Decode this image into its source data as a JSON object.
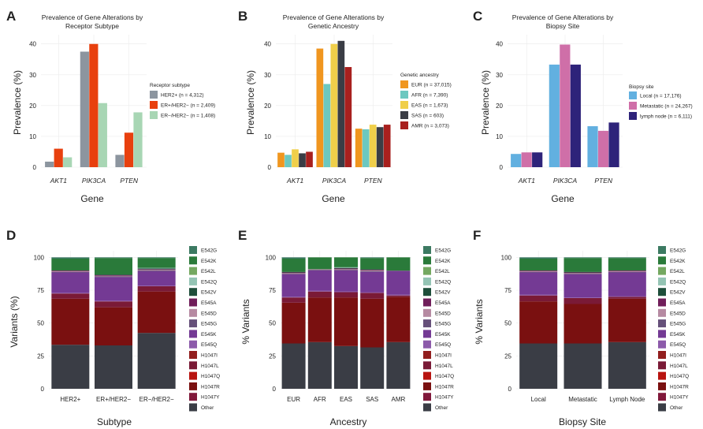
{
  "colors": {
    "receptor": [
      "#8c959f",
      "#e8400e",
      "#a8d6b4"
    ],
    "ancestry": [
      "#f0961f",
      "#6cc8c0",
      "#f0cf4a",
      "#3a3d45",
      "#a8201e"
    ],
    "site": [
      "#62b0e0",
      "#cf6fa8",
      "#2e237a"
    ],
    "mutation": [
      "#3c7a62",
      "#2a7a3a",
      "#74a860",
      "#94c4b4",
      "#1e4e3a",
      "#701e5a",
      "#b68aa2",
      "#66507a",
      "#743a94",
      "#8c5aaa",
      "#921e1e",
      "#7a1a36",
      "#b81410",
      "#7a1010",
      "#80183a",
      "#3a3d45"
    ]
  },
  "chart_data": [
    {
      "id": "A",
      "panel_label": "A",
      "type": "bar",
      "title": "Prevalence of Gene Alterations by Receptor Subtype",
      "title_lines": [
        "Prevalence of Gene Alterations by",
        "Receptor Subtype"
      ],
      "xlabel": "Gene",
      "ylabel": "Prevalence (%)",
      "categories": [
        "AKT1",
        "PIK3CA",
        "PTEN"
      ],
      "ylim": [
        0,
        43
      ],
      "yticks": [
        0,
        10,
        20,
        30,
        40
      ],
      "legend_title": "Receptor subtype",
      "legend_position": "right",
      "series": [
        {
          "name": "HER2+ (n = 4,312)",
          "values": [
            1.8,
            37.5,
            4.0
          ]
        },
        {
          "name": "ER+/HER2− (n = 2,409)",
          "values": [
            6.0,
            40.0,
            11.2
          ]
        },
        {
          "name": "ER−/HER2− (n = 1,408)",
          "values": [
            3.2,
            20.8,
            17.8
          ]
        }
      ]
    },
    {
      "id": "B",
      "panel_label": "B",
      "type": "bar",
      "title": "Prevalence of Gene Alterations by Genetic Ancestry",
      "title_lines": [
        "Prevalence of Gene Alterations by",
        "Genetic Ancestry"
      ],
      "xlabel": "Gene",
      "ylabel": "Prevalence (%)",
      "categories": [
        "AKT1",
        "PIK3CA",
        "PTEN"
      ],
      "ylim": [
        0,
        43
      ],
      "yticks": [
        0,
        10,
        20,
        30,
        40
      ],
      "legend_title": "Genetic ancestry",
      "legend_position": "right",
      "series": [
        {
          "name": "EUR (n = 37,015)",
          "values": [
            4.7,
            38.5,
            12.5
          ]
        },
        {
          "name": "AFR (n = 7,390)",
          "values": [
            4.0,
            27.0,
            12.3
          ]
        },
        {
          "name": "EAS (n = 1,673)",
          "values": [
            5.8,
            40.0,
            13.8
          ]
        },
        {
          "name": "SAS (n = 603)",
          "values": [
            4.5,
            41.0,
            13.0
          ]
        },
        {
          "name": "AMR (n = 3,073)",
          "values": [
            5.0,
            32.5,
            13.8
          ]
        }
      ]
    },
    {
      "id": "C",
      "panel_label": "C",
      "type": "bar",
      "title": "Prevalence of Gene Alterations by Biopsy Site",
      "title_lines": [
        "Prevalence of Gene Alterations by",
        "Biopsy Site"
      ],
      "xlabel": "Gene",
      "ylabel": "Prevalence (%)",
      "categories": [
        "AKT1",
        "PIK3CA",
        "PTEN"
      ],
      "ylim": [
        0,
        43
      ],
      "yticks": [
        0,
        10,
        20,
        30,
        40
      ],
      "legend_title": "Biopsy site",
      "legend_position": "right",
      "series": [
        {
          "name": "Local (n = 17,176)",
          "values": [
            4.3,
            33.3,
            13.3
          ]
        },
        {
          "name": "Metastatic (n = 24,267)",
          "values": [
            4.8,
            39.8,
            11.8
          ]
        },
        {
          "name": "lymph node (n = 6,111)",
          "values": [
            4.8,
            33.3,
            14.5
          ]
        }
      ]
    },
    {
      "id": "D",
      "panel_label": "D",
      "type": "bar",
      "stacked": true,
      "xlabel": "Subtype",
      "ylabel": "Variants (%)",
      "categories": [
        "HER2+",
        "ER+/HER2−",
        "ER−/HER2−"
      ],
      "ylim": [
        0,
        105
      ],
      "yticks": [
        0,
        25,
        50,
        75,
        100
      ],
      "legend_position": "right",
      "stack_labels": [
        "E542G",
        "E542K",
        "E542L",
        "E542Q",
        "E542V",
        "E545A",
        "E545D",
        "E545G",
        "E545K",
        "E545Q",
        "H1047I",
        "H1047L",
        "H1047Q",
        "H1047R",
        "H1047Y",
        "Other"
      ],
      "series": [
        {
          "name": "Other",
          "values": [
            33.5,
            33.0,
            42.5
          ]
        },
        {
          "name": "H1047Y",
          "values": [
            0.0,
            0.0,
            0.0
          ]
        },
        {
          "name": "H1047R",
          "values": [
            35.0,
            29.0,
            31.5
          ]
        },
        {
          "name": "H1047Q",
          "values": [
            0.0,
            0.0,
            0.0
          ]
        },
        {
          "name": "H1047L",
          "values": [
            4.0,
            4.5,
            4.0
          ]
        },
        {
          "name": "H1047I",
          "values": [
            0.0,
            0.0,
            0.0
          ]
        },
        {
          "name": "E545Q",
          "values": [
            0.5,
            0.5,
            0.5
          ]
        },
        {
          "name": "E545K",
          "values": [
            15.5,
            18.0,
            11.0
          ]
        },
        {
          "name": "E545G",
          "values": [
            0.5,
            0.5,
            0.5
          ]
        },
        {
          "name": "E545D",
          "values": [
            0.5,
            0.5,
            0.5
          ]
        },
        {
          "name": "E545A",
          "values": [
            0.5,
            0.5,
            0.5
          ]
        },
        {
          "name": "E542V",
          "values": [
            0.0,
            0.5,
            0.5
          ]
        },
        {
          "name": "E542Q",
          "values": [
            0.0,
            0.0,
            0.5
          ]
        },
        {
          "name": "E542L",
          "values": [
            0.0,
            0.0,
            0.0
          ]
        },
        {
          "name": "E542K",
          "values": [
            9.0,
            12.5,
            7.5
          ]
        },
        {
          "name": "E542G",
          "values": [
            1.0,
            0.5,
            0.5
          ]
        }
      ]
    },
    {
      "id": "E",
      "panel_label": "E",
      "type": "bar",
      "stacked": true,
      "xlabel": "Ancestry",
      "ylabel": "% Variants",
      "categories": [
        "EUR",
        "AFR",
        "EAS",
        "SAS",
        "AMR"
      ],
      "ylim": [
        0,
        105
      ],
      "yticks": [
        0,
        25,
        50,
        75,
        100
      ],
      "legend_position": "right",
      "stack_labels": [
        "E542G",
        "E542K",
        "E542L",
        "E542Q",
        "E542V",
        "E545A",
        "E545D",
        "E545G",
        "E545K",
        "E545Q",
        "H1047I",
        "H1047L",
        "H1047Q",
        "H1047R",
        "H1047Y",
        "Other"
      ],
      "series": [
        {
          "name": "Other",
          "values": [
            34.5,
            35.5,
            32.5,
            31.5,
            35.5
          ]
        },
        {
          "name": "H1047Y",
          "values": [
            0.0,
            0.0,
            0.0,
            0.0,
            0.0
          ]
        },
        {
          "name": "H1047R",
          "values": [
            31.0,
            34.0,
            37.0,
            37.0,
            34.5
          ]
        },
        {
          "name": "H1047Q",
          "values": [
            0.0,
            0.0,
            0.0,
            0.0,
            0.0
          ]
        },
        {
          "name": "H1047L",
          "values": [
            4.0,
            4.5,
            4.0,
            4.5,
            1.0
          ]
        },
        {
          "name": "H1047I",
          "values": [
            0.0,
            0.0,
            0.0,
            0.0,
            0.0
          ]
        },
        {
          "name": "E545Q",
          "values": [
            0.5,
            0.5,
            0.5,
            0.5,
            0.5
          ]
        },
        {
          "name": "E545K",
          "values": [
            17.0,
            15.5,
            16.0,
            15.5,
            18.0
          ]
        },
        {
          "name": "E545G",
          "values": [
            0.5,
            0.5,
            0.5,
            0.5,
            0.5
          ]
        },
        {
          "name": "E545D",
          "values": [
            0.5,
            0.5,
            0.5,
            0.5,
            0.0
          ]
        },
        {
          "name": "E545A",
          "values": [
            0.5,
            0.0,
            0.5,
            0.5,
            0.0
          ]
        },
        {
          "name": "E542V",
          "values": [
            0.5,
            0.0,
            0.5,
            0.5,
            0.0
          ]
        },
        {
          "name": "E542Q",
          "values": [
            0.0,
            0.0,
            0.5,
            0.0,
            0.0
          ]
        },
        {
          "name": "E542L",
          "values": [
            0.0,
            0.0,
            0.0,
            0.0,
            0.0
          ]
        },
        {
          "name": "E542K",
          "values": [
            10.0,
            9.0,
            7.5,
            8.5,
            10.0
          ]
        },
        {
          "name": "E542G",
          "values": [
            1.0,
            0.0,
            0.0,
            0.5,
            0.0
          ]
        }
      ]
    },
    {
      "id": "F",
      "panel_label": "F",
      "type": "bar",
      "stacked": true,
      "xlabel": "Biopsy Site",
      "ylabel": "% Variants",
      "categories": [
        "Local",
        "Metastatic",
        "Lymph Node"
      ],
      "ylim": [
        0,
        105
      ],
      "yticks": [
        0,
        25,
        50,
        75,
        100
      ],
      "legend_position": "right",
      "stack_labels": [
        "E542G",
        "E542K",
        "E542L",
        "E542Q",
        "E542V",
        "E545A",
        "E545D",
        "E545G",
        "E545K",
        "E545Q",
        "H1047I",
        "H1047L",
        "H1047Q",
        "H1047R",
        "H1047Y",
        "Other"
      ],
      "series": [
        {
          "name": "Other",
          "values": [
            34.5,
            34.5,
            35.5
          ]
        },
        {
          "name": "H1047Y",
          "values": [
            0.0,
            0.0,
            0.0
          ]
        },
        {
          "name": "H1047R",
          "values": [
            32.0,
            30.0,
            33.0
          ]
        },
        {
          "name": "H1047Q",
          "values": [
            0.0,
            0.0,
            0.0
          ]
        },
        {
          "name": "H1047L",
          "values": [
            4.5,
            4.5,
            1.5
          ]
        },
        {
          "name": "H1047I",
          "values": [
            0.0,
            0.0,
            0.0
          ]
        },
        {
          "name": "E545Q",
          "values": [
            0.5,
            0.5,
            0.5
          ]
        },
        {
          "name": "E545K",
          "values": [
            17.0,
            17.5,
            18.0
          ]
        },
        {
          "name": "E545G",
          "values": [
            0.5,
            0.5,
            0.5
          ]
        },
        {
          "name": "E545D",
          "values": [
            0.5,
            0.5,
            0.5
          ]
        },
        {
          "name": "E545A",
          "values": [
            0.5,
            0.5,
            0.5
          ]
        },
        {
          "name": "E542V",
          "values": [
            0.0,
            0.5,
            0.0
          ]
        },
        {
          "name": "E542Q",
          "values": [
            0.0,
            0.0,
            0.0
          ]
        },
        {
          "name": "E542L",
          "values": [
            0.0,
            0.0,
            0.0
          ]
        },
        {
          "name": "E542K",
          "values": [
            9.0,
            10.5,
            9.5
          ]
        },
        {
          "name": "E542G",
          "values": [
            1.0,
            0.5,
            0.5
          ]
        }
      ]
    }
  ]
}
